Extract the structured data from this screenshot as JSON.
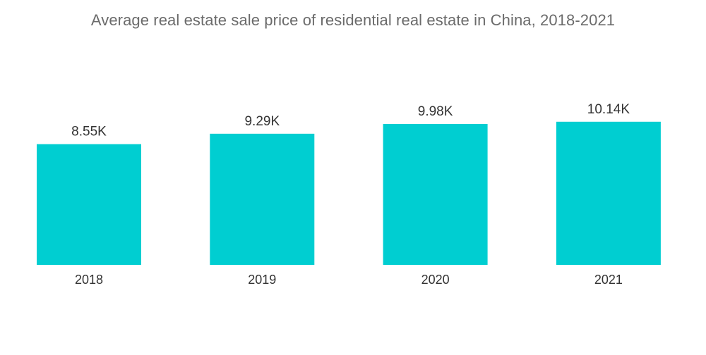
{
  "chart_data": {
    "type": "bar",
    "title": "Average real estate sale price of residential real estate in China, 2018-2021",
    "categories": [
      "2018",
      "2019",
      "2020",
      "2021"
    ],
    "values": [
      8550,
      9290,
      9980,
      10140
    ],
    "value_labels": [
      "8.55K",
      "9.29K",
      "9.98K",
      "10.14K"
    ],
    "xlabel": "",
    "ylabel": "",
    "ylim": [
      0,
      10580
    ],
    "grid": false,
    "legend": "none",
    "bar_color": "#00CED1"
  }
}
